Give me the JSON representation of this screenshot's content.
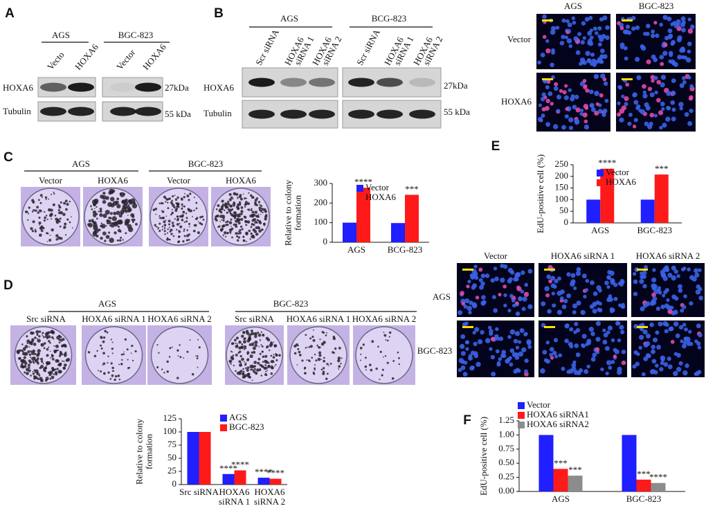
{
  "panel_A": {
    "letter": "A",
    "groups": [
      "AGS",
      "BGC-823"
    ],
    "lanes": [
      "Vecto",
      "HOXA6",
      "Vector",
      "HOXA6"
    ],
    "blot_rows": [
      "HOXA6",
      "Tubulin"
    ],
    "sizes": [
      "27kDa",
      "55 kDa"
    ]
  },
  "panel_B": {
    "letter": "B",
    "groups": [
      "AGS",
      "BCG-823"
    ],
    "lanes": [
      [
        "Scr siRNA"
      ],
      [
        "HOXA6",
        "siRNA 1"
      ],
      [
        "HOXA6",
        "siRNA 2"
      ],
      [
        "Scr siRNA"
      ],
      [
        "HOXA6",
        "siRNA 1"
      ],
      [
        "HOXA6",
        "siRNA 2"
      ]
    ],
    "blot_rows": [
      "HOXA6",
      "Tubulin"
    ],
    "sizes": [
      "27kDa",
      "55 kDa"
    ]
  },
  "edu_top": {
    "columns": [
      "AGS",
      "BGC-823"
    ],
    "rows": [
      "Vector",
      "HOXA6"
    ]
  },
  "panel_C": {
    "letter": "C",
    "groups": [
      "AGS",
      "BGC-823"
    ],
    "dishes": [
      "Vector",
      "HOXA6",
      "Vector",
      "HOXA6"
    ]
  },
  "panel_D": {
    "letter": "D",
    "groups": [
      "AGS",
      "BGC-823"
    ],
    "dishes": [
      "Src siRNA",
      "HOXA6 siRNA 1",
      "HOXA6 siRNA 2",
      "Src siRNA",
      "HOXA6 siRNA 1",
      "HOXA6 siRNA 2"
    ]
  },
  "edu_bottom": {
    "columns": [
      "Vector",
      "HOXA6 siRNA 1",
      "HOXA6 siRNA 2"
    ],
    "rows": [
      "AGS",
      "BGC-823"
    ]
  },
  "chart_data": [
    {
      "type": "bar",
      "ylabel": "Relative to colony formation",
      "categories": [
        "AGS",
        "BCG-823"
      ],
      "series": [
        {
          "name": "Vector",
          "color": "#1f1fff",
          "values": [
            100,
            98
          ]
        },
        {
          "name": "HOXA6",
          "color": "#ff1a1a",
          "values": [
            278,
            242
          ],
          "significance": [
            "****",
            "***"
          ]
        }
      ],
      "ylim": [
        0,
        300
      ],
      "yticks": [
        0,
        100,
        200,
        300
      ]
    },
    {
      "type": "bar",
      "panel": "E",
      "ylabel": "EdU-positive cell (%)",
      "categories": [
        "AGS",
        "BGC-823"
      ],
      "series": [
        {
          "name": "Vector",
          "color": "#1f1fff",
          "values": [
            100,
            100
          ]
        },
        {
          "name": "HOXA6",
          "color": "#ff1a1a",
          "values": [
            233,
            208
          ],
          "significance": [
            "****",
            "***"
          ]
        }
      ],
      "ylim": [
        0,
        250
      ],
      "yticks": [
        0,
        50,
        100,
        150,
        200,
        250
      ]
    },
    {
      "type": "bar",
      "ylabel": "Relative to colony formation",
      "categories": [
        "Src siRNA",
        "HOXA6 siRNA 1",
        "HOXA6 siRNA 2"
      ],
      "series": [
        {
          "name": "AGS",
          "color": "#1f1fff",
          "values": [
            100,
            20,
            13
          ],
          "significance": [
            null,
            "****",
            "****"
          ]
        },
        {
          "name": "BGC-823",
          "color": "#ff1a1a",
          "values": [
            100,
            27,
            11
          ],
          "significance": [
            null,
            "****",
            "****"
          ]
        }
      ],
      "ylim": [
        0,
        125
      ],
      "yticks": [
        0,
        25,
        50,
        75,
        100,
        125
      ]
    },
    {
      "type": "bar",
      "panel": "F",
      "ylabel": "EdU-positive cell (%)",
      "categories": [
        "AGS",
        "BGC-823"
      ],
      "series": [
        {
          "name": "Vector",
          "color": "#1f1fff",
          "values": [
            1.0,
            1.0
          ]
        },
        {
          "name": "HOXA6 siRNA1",
          "color": "#ff1a1a",
          "values": [
            0.4,
            0.21
          ],
          "significance": [
            "***",
            "***"
          ]
        },
        {
          "name": "HOXA6 siRNA2",
          "color": "#8c8c8c",
          "values": [
            0.28,
            0.15
          ],
          "significance": [
            "***",
            "****"
          ]
        }
      ],
      "ylim": [
        0,
        1.25
      ],
      "yticks": [
        {
          "value": 0,
          "label": "0.00"
        },
        {
          "value": 0.25,
          "label": "0.25"
        },
        {
          "value": 0.5,
          "label": "0.50"
        },
        {
          "value": 0.75,
          "label": "0.75"
        },
        {
          "value": 1,
          "label": "1.00"
        },
        {
          "value": 1.25,
          "label": "1.25"
        }
      ]
    }
  ]
}
